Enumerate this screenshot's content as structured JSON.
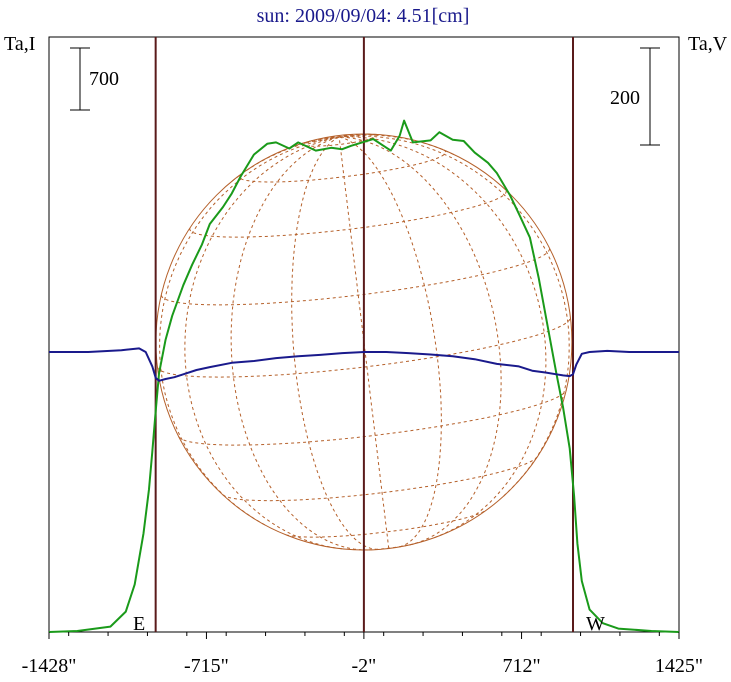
{
  "chart_data": {
    "type": "line",
    "title": "sun: 2009/09/04: 4.51[cm]",
    "ylabel_left": "Ta,I",
    "ylabel_right": "Ta,V",
    "x_ticks": [
      "-1428\"",
      "-715\"",
      "-2\"",
      "712\"",
      "1425\""
    ],
    "x_tick_values": [
      -1428,
      -715,
      -2,
      712,
      1425
    ],
    "xlim": [
      -1428,
      1425
    ],
    "limb_markers": [
      -945,
      -2,
      945
    ],
    "limb_labels": {
      "east": "E",
      "west": "W"
    },
    "scale_bar_left": {
      "label": "700",
      "value": 700
    },
    "scale_bar_right": {
      "label": "200",
      "value": 200
    },
    "series": [
      {
        "name": "Ta,I",
        "color": "#1a9a1a",
        "x": [
          -1428,
          -1300,
          -1150,
          -1080,
          -1040,
          -1000,
          -975,
          -960,
          -945,
          -930,
          -900,
          -870,
          -820,
          -780,
          -735,
          -700,
          -640,
          -600,
          -560,
          -500,
          -440,
          -400,
          -340,
          -300,
          -220,
          -150,
          -100,
          -60,
          -10,
          40,
          120,
          160,
          180,
          220,
          300,
          340,
          400,
          450,
          500,
          560,
          600,
          660,
          700,
          750,
          790,
          830,
          870,
          900,
          930,
          950,
          965,
          985,
          1020,
          1080,
          1150,
          1300,
          1425
        ],
        "y": [
          0,
          15,
          80,
          300,
          700,
          1450,
          2100,
          2650,
          3250,
          3800,
          4300,
          4650,
          5100,
          5400,
          5700,
          6000,
          6250,
          6450,
          6700,
          7020,
          7180,
          7200,
          7110,
          7200,
          7080,
          7120,
          7100,
          7150,
          7200,
          7250,
          7080,
          7300,
          7520,
          7200,
          7230,
          7350,
          7240,
          7220,
          7050,
          6900,
          6750,
          6420,
          6150,
          5800,
          5200,
          4500,
          3800,
          3300,
          2700,
          2000,
          1300,
          750,
          330,
          130,
          50,
          15,
          0
        ]
      },
      {
        "name": "Ta,V",
        "color": "#1a1a8c",
        "x": [
          -1428,
          -1250,
          -1100,
          -1020,
          -990,
          -960,
          -945,
          -930,
          -900,
          -860,
          -820,
          -760,
          -700,
          -600,
          -500,
          -400,
          -300,
          -200,
          -100,
          0,
          100,
          200,
          300,
          400,
          500,
          600,
          700,
          760,
          820,
          870,
          900,
          930,
          945,
          960,
          985,
          1020,
          1100,
          1200,
          1300,
          1425
        ],
        "y": [
          0,
          0,
          5,
          10,
          0,
          -40,
          -72,
          -80,
          -75,
          -70,
          -62,
          -50,
          -42,
          -30,
          -25,
          -17,
          -12,
          -8,
          -3,
          0,
          0,
          -3,
          -7,
          -12,
          -20,
          -33,
          -40,
          -52,
          -57,
          -62,
          -65,
          -67,
          -62,
          -35,
          -5,
          0,
          3,
          0,
          0,
          0
        ]
      }
    ]
  }
}
